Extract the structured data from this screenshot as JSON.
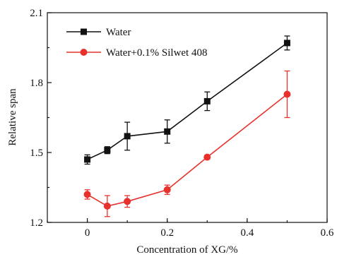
{
  "chart_data": {
    "type": "line",
    "xlabel": "Concentration of XG/%",
    "ylabel": "Relative span",
    "xlim": [
      -0.1,
      0.6
    ],
    "ylim": [
      1.2,
      2.1
    ],
    "xticks": [
      0,
      0.2,
      0.4,
      0.6
    ],
    "xtick_labels": [
      "0",
      "0.2",
      "0.4",
      "0.6"
    ],
    "yticks": [
      1.2,
      1.5,
      1.8,
      2.1
    ],
    "ytick_labels": [
      "1.2",
      "1.5",
      "1.8",
      "2.1"
    ],
    "grid": false,
    "legend_position": "top-left",
    "series": [
      {
        "name": "Water",
        "color": "#111111",
        "marker": "square",
        "x": [
          0,
          0.05,
          0.1,
          0.2,
          0.3,
          0.5
        ],
        "y": [
          1.47,
          1.51,
          1.57,
          1.59,
          1.72,
          1.97
        ],
        "err": [
          0.02,
          0.015,
          0.06,
          0.05,
          0.04,
          0.03
        ]
      },
      {
        "name": "Water+0.1% Silwet 408",
        "color": "#e8312c",
        "marker": "circle",
        "x": [
          0,
          0.05,
          0.1,
          0.2,
          0.3,
          0.5
        ],
        "y": [
          1.32,
          1.27,
          1.29,
          1.34,
          1.48,
          1.75
        ],
        "err": [
          0.02,
          0.045,
          0.025,
          0.02,
          0.008,
          0.1
        ]
      }
    ]
  }
}
